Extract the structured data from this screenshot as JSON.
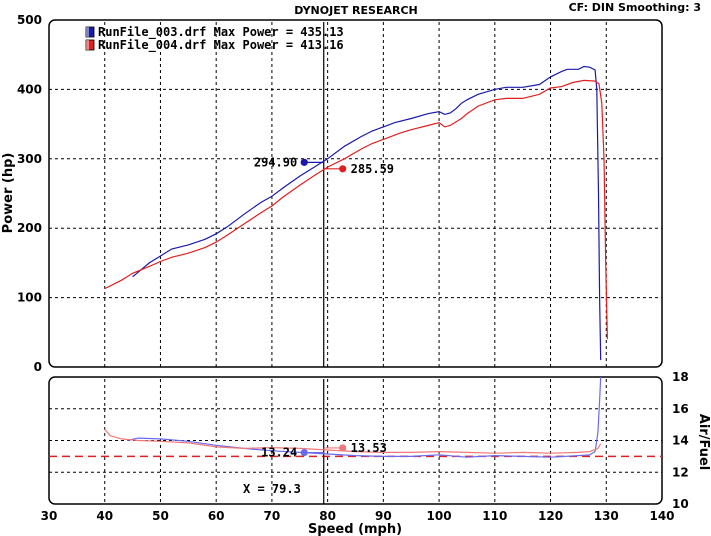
{
  "header": {
    "title": "DYNOJET RESEARCH",
    "settings": "CF: DIN  Smoothing: 3"
  },
  "legend": [
    {
      "file": "RunFile_003.drf Max Power = 435.13",
      "color": "#1a1aa8"
    },
    {
      "file": "RunFile_004.drf Max Power = 413.16",
      "color": "#e02020"
    }
  ],
  "cursor": {
    "x_readout": "X = 79.3",
    "x_value": 79.3
  },
  "chart_data": [
    {
      "type": "line",
      "title": "DYNOJET RESEARCH",
      "xlabel": "Speed (mph)",
      "ylabel": "Power (hp)",
      "xlim": [
        30,
        140
      ],
      "ylim": [
        0,
        500
      ],
      "grid": true,
      "legend_position": "top-left",
      "x_ticks": [
        "30",
        "40",
        "50",
        "60",
        "70",
        "80",
        "90",
        "100",
        "110",
        "120",
        "130",
        "140"
      ],
      "y_ticks": [
        "0",
        "100",
        "200",
        "300",
        "400",
        "500"
      ],
      "series": [
        {
          "name": "RunFile_003.drf",
          "color": "#1a1aa8",
          "cursor_label": "294.90",
          "cursor_x": 75.8,
          "cursor_y": 294.9,
          "points": [
            [
              45,
              130
            ],
            [
              48,
              150
            ],
            [
              50,
              160
            ],
            [
              52,
              170
            ],
            [
              55,
              176
            ],
            [
              58,
              184
            ],
            [
              60,
              192
            ],
            [
              62,
              202
            ],
            [
              65,
              220
            ],
            [
              68,
              237
            ],
            [
              70,
              246
            ],
            [
              72,
              258
            ],
            [
              75,
              275
            ],
            [
              78,
              290
            ],
            [
              80,
              300
            ],
            [
              83,
              318
            ],
            [
              86,
              332
            ],
            [
              88,
              340
            ],
            [
              90,
              346
            ],
            [
              92,
              352
            ],
            [
              95,
              358
            ],
            [
              98,
              365
            ],
            [
              100,
              368
            ],
            [
              101,
              364
            ],
            [
              102,
              366
            ],
            [
              103,
              372
            ],
            [
              104,
              380
            ],
            [
              105,
              385
            ],
            [
              107,
              393
            ],
            [
              110,
              400
            ],
            [
              112,
              403
            ],
            [
              115,
              403
            ],
            [
              118,
              407
            ],
            [
              120,
              418
            ],
            [
              122,
              426
            ],
            [
              123,
              429
            ],
            [
              125,
              429
            ],
            [
              126,
              433
            ],
            [
              127,
              432
            ],
            [
              128,
              428
            ],
            [
              128.3,
              400
            ],
            [
              128.6,
              250
            ],
            [
              128.8,
              100
            ],
            [
              129,
              10
            ]
          ]
        },
        {
          "name": "RunFile_004.drf",
          "color": "#e02020",
          "cursor_label": "285.59",
          "cursor_x": 82.7,
          "cursor_y": 285.59,
          "points": [
            [
              40,
              113
            ],
            [
              43,
              125
            ],
            [
              45,
              135
            ],
            [
              48,
              145
            ],
            [
              50,
              152
            ],
            [
              52,
              158
            ],
            [
              55,
              164
            ],
            [
              58,
              172
            ],
            [
              60,
              180
            ],
            [
              62,
              190
            ],
            [
              65,
              206
            ],
            [
              68,
              222
            ],
            [
              70,
              232
            ],
            [
              72,
              245
            ],
            [
              75,
              262
            ],
            [
              78,
              278
            ],
            [
              80,
              288
            ],
            [
              83,
              300
            ],
            [
              86,
              314
            ],
            [
              88,
              322
            ],
            [
              90,
              328
            ],
            [
              93,
              337
            ],
            [
              95,
              342
            ],
            [
              98,
              348
            ],
            [
              100,
              352
            ],
            [
              101,
              346
            ],
            [
              102,
              348
            ],
            [
              104,
              358
            ],
            [
              105,
              365
            ],
            [
              107,
              376
            ],
            [
              110,
              385
            ],
            [
              112,
              387
            ],
            [
              115,
              387
            ],
            [
              118,
              393
            ],
            [
              120,
              402
            ],
            [
              122,
              404
            ],
            [
              124,
              410
            ],
            [
              126,
              413
            ],
            [
              128,
              412
            ],
            [
              128.7,
              408
            ],
            [
              129.2,
              380
            ],
            [
              129.6,
              300
            ],
            [
              129.9,
              150
            ],
            [
              130.2,
              40
            ]
          ]
        }
      ]
    },
    {
      "type": "line",
      "xlabel": "Speed (mph)",
      "ylabel": "Air/Fuel",
      "xlim": [
        30,
        140
      ],
      "ylim": [
        10,
        18
      ],
      "grid": true,
      "x_ticks": [
        "30",
        "40",
        "50",
        "60",
        "70",
        "80",
        "90",
        "100",
        "110",
        "120",
        "130",
        "140"
      ],
      "y_ticks": [
        "10",
        "12",
        "14",
        "16",
        "18"
      ],
      "reference_line": 13.0,
      "series": [
        {
          "name": "RunFile_003.drf",
          "color": "#6a6af0",
          "cursor_label": "13.24",
          "cursor_x": 75.8,
          "cursor_y": 13.24,
          "points": [
            [
              44,
              14.0
            ],
            [
              46,
              14.15
            ],
            [
              50,
              14.1
            ],
            [
              55,
              13.95
            ],
            [
              60,
              13.7
            ],
            [
              65,
              13.5
            ],
            [
              70,
              13.35
            ],
            [
              75,
              13.25
            ],
            [
              80,
              13.15
            ],
            [
              85,
              13.05
            ],
            [
              90,
              13.0
            ],
            [
              95,
              13.0
            ],
            [
              100,
              13.1
            ],
            [
              105,
              12.95
            ],
            [
              110,
              13.05
            ],
            [
              115,
              13.0
            ],
            [
              120,
              12.95
            ],
            [
              125,
              13.05
            ],
            [
              127,
              13.1
            ],
            [
              128,
              13.3
            ],
            [
              128.5,
              14.5
            ],
            [
              128.8,
              16.5
            ],
            [
              129,
              18
            ]
          ]
        },
        {
          "name": "RunFile_004.drf",
          "color": "#f07878",
          "cursor_label": "13.53",
          "cursor_x": 82.7,
          "cursor_y": 13.53,
          "points": [
            [
              40,
              14.7
            ],
            [
              41,
              14.3
            ],
            [
              43,
              14.1
            ],
            [
              46,
              14.0
            ],
            [
              50,
              13.95
            ],
            [
              55,
              13.85
            ],
            [
              60,
              13.6
            ],
            [
              65,
              13.5
            ],
            [
              70,
              13.55
            ],
            [
              75,
              13.5
            ],
            [
              80,
              13.4
            ],
            [
              85,
              13.3
            ],
            [
              90,
              13.25
            ],
            [
              95,
              13.25
            ],
            [
              100,
              13.3
            ],
            [
              105,
              13.25
            ],
            [
              110,
              13.2
            ],
            [
              115,
              13.25
            ],
            [
              120,
              13.2
            ],
            [
              125,
              13.25
            ],
            [
              127,
              13.3
            ],
            [
              128.5,
              13.5
            ],
            [
              129,
              13.8
            ]
          ]
        }
      ]
    }
  ]
}
